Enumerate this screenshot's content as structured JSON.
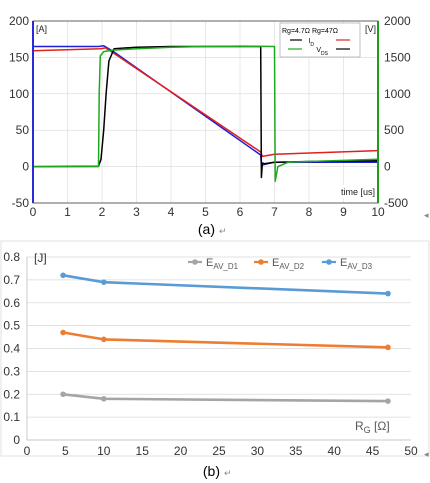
{
  "chart_data": [
    {
      "id": "waveform",
      "type": "line",
      "caption": "(a)",
      "xlabel": "time [us]",
      "y_left_unit": "[A]",
      "y_right_unit": "[V]",
      "xlim": [
        0,
        10
      ],
      "ylim_left": [
        -50,
        200
      ],
      "ylim_right": [
        -500,
        2000
      ],
      "x_ticks": [
        "0",
        "1",
        "2",
        "3",
        "4",
        "5",
        "6",
        "7",
        "8",
        "9",
        "10"
      ],
      "y_left_ticks": [
        "-50",
        "0",
        "50",
        "100",
        "150",
        "200"
      ],
      "y_right_ticks": [
        "-500",
        "0",
        "500",
        "1000",
        "1500",
        "2000"
      ],
      "legend": {
        "header": [
          "Rg=4.7Ω",
          "Rg=47Ω"
        ],
        "rows": [
          "I_D",
          "V_DS"
        ]
      },
      "colors": {
        "id_rg47": "#1f1fd6",
        "id_rg4_7": "#e0201e",
        "vds_rg4_7": "#000000",
        "vds_rg47": "#1ea81e",
        "axis_left": "#2a2ad8",
        "axis_right": "#1a9e1a"
      },
      "series": [
        {
          "axis": "left",
          "color_key": "id_rg47",
          "points": [
            [
              0,
              165
            ],
            [
              1.9,
              165
            ],
            [
              2.05,
              166
            ],
            [
              2.3,
              159
            ],
            [
              6.6,
              16
            ],
            [
              6.62,
              2
            ],
            [
              7.0,
              6
            ],
            [
              10,
              6
            ]
          ]
        },
        {
          "axis": "left",
          "color_key": "id_rg4_7",
          "points": [
            [
              0,
              159
            ],
            [
              1.95,
              162
            ],
            [
              2.1,
              163
            ],
            [
              2.3,
              157
            ],
            [
              6.6,
              20
            ],
            [
              6.65,
              14
            ],
            [
              7.0,
              17
            ],
            [
              10,
              22
            ]
          ]
        },
        {
          "axis": "right",
          "color_key": "vds_rg4_7",
          "points": [
            [
              0,
              0
            ],
            [
              1.9,
              5
            ],
            [
              1.97,
              100
            ],
            [
              2.05,
              500
            ],
            [
              2.12,
              1000
            ],
            [
              2.2,
              1450
            ],
            [
              2.35,
              1620
            ],
            [
              3.0,
              1640
            ],
            [
              4.0,
              1650
            ],
            [
              5.0,
              1650
            ],
            [
              6.0,
              1650
            ],
            [
              6.6,
              1650
            ],
            [
              6.62,
              -150
            ],
            [
              6.65,
              50
            ],
            [
              6.7,
              40
            ],
            [
              7.0,
              60
            ],
            [
              8.0,
              70
            ],
            [
              10,
              80
            ]
          ]
        },
        {
          "axis": "right",
          "color_key": "vds_rg47",
          "points": [
            [
              0,
              0
            ],
            [
              1.9,
              0
            ],
            [
              1.92,
              1000
            ],
            [
              1.95,
              1520
            ],
            [
              2.05,
              1580
            ],
            [
              2.3,
              1600
            ],
            [
              3.0,
              1620
            ],
            [
              4.0,
              1640
            ],
            [
              5.0,
              1650
            ],
            [
              6.0,
              1655
            ],
            [
              7.0,
              1650
            ],
            [
              7.02,
              -200
            ],
            [
              7.1,
              0
            ],
            [
              7.4,
              60
            ],
            [
              8.0,
              70
            ],
            [
              10,
              100
            ]
          ]
        }
      ]
    },
    {
      "id": "energy",
      "type": "line",
      "caption": "(b)",
      "ylabel": "[J]",
      "xlabel": "R_G [Ω]",
      "xlim": [
        0,
        50
      ],
      "ylim": [
        0,
        0.8
      ],
      "x_ticks": [
        "0",
        "5",
        "10",
        "15",
        "20",
        "25",
        "30",
        "35",
        "40",
        "45",
        "50"
      ],
      "y_ticks": [
        "0",
        "0.1",
        "0.2",
        "0.3",
        "0.4",
        "0.5",
        "0.6",
        "0.7",
        "0.8"
      ],
      "x": [
        4.7,
        10,
        47
      ],
      "series": [
        {
          "name": "E_AV_D1",
          "color": "#a5a5a5",
          "values": [
            0.2,
            0.18,
            0.17
          ]
        },
        {
          "name": "E_AV_D2",
          "color": "#ed7d31",
          "values": [
            0.47,
            0.44,
            0.405
          ]
        },
        {
          "name": "E_AV_D3",
          "color": "#5b9bd5",
          "values": [
            0.72,
            0.69,
            0.64
          ]
        }
      ]
    }
  ]
}
